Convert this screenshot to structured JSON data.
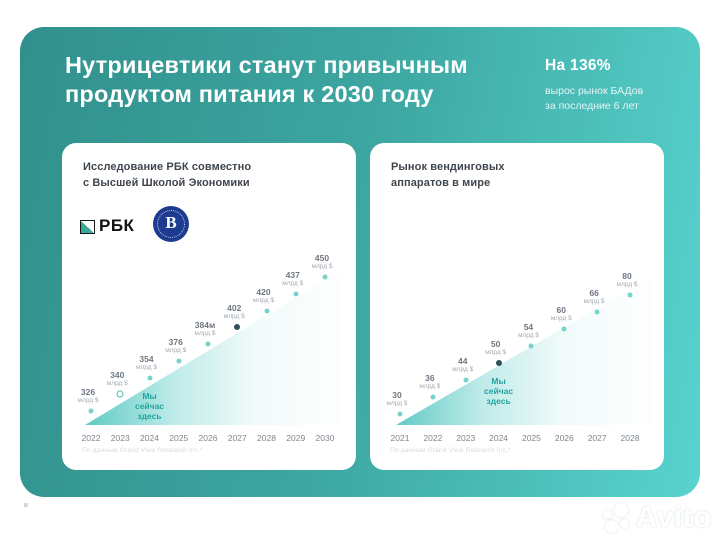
{
  "page": {
    "corner_fragment": "и"
  },
  "slide": {
    "title": "Нутрицевтики станут привычным\nпродуктом питания к 2030 году",
    "stat": {
      "value": "На 136%",
      "description": "вырос рынок БАДов\nза последние 6 лет"
    },
    "colors": {
      "background_gradient_start": "#31908c",
      "background_gradient_end": "#59d3ce",
      "accent_teal": "#23a49e",
      "card_background": "#ffffff"
    }
  },
  "logos": {
    "rbc": "РБК",
    "hse_letter": "В"
  },
  "chart_data": [
    {
      "type": "area",
      "title": "Исследование РБК совместно\nс Высшей Школой Экономики",
      "logos": [
        "РБК",
        "Высшая Школа Экономики"
      ],
      "categories": [
        "2022",
        "2023",
        "2024",
        "2025",
        "2026",
        "2027",
        "2028",
        "2029",
        "2030"
      ],
      "values": [
        326,
        340,
        354,
        376,
        384,
        402,
        420,
        437,
        450
      ],
      "value_labels": [
        "326",
        "340",
        "354",
        "376",
        "384м",
        "402",
        "420",
        "437",
        "450"
      ],
      "unit": "млрд $",
      "xlabel": "",
      "ylabel": "",
      "legend": "none",
      "grid": false,
      "annotation": "Мы\nсейчас\nздесь",
      "annotation_index": 2,
      "ring_index": 1,
      "highlight_index": 5,
      "source": "По данным Grand View Research Inc.*"
    },
    {
      "type": "area",
      "title": "Рынок вендинговых\nаппаратов в мире",
      "categories": [
        "2021",
        "2022",
        "2023",
        "2024",
        "2025",
        "2026",
        "2027",
        "2028"
      ],
      "values": [
        30,
        36,
        44,
        50,
        54,
        60,
        66,
        80
      ],
      "value_labels": [
        "30",
        "36",
        "44",
        "50",
        "54",
        "60",
        "66",
        "80"
      ],
      "unit": "млрд $",
      "xlabel": "",
      "ylabel": "",
      "legend": "none",
      "grid": false,
      "annotation": "Мы\nсейчас\nздесь",
      "annotation_index": 3,
      "ring_index": null,
      "highlight_index": 3,
      "source": "По данным Grand View Research Inc.*"
    }
  ],
  "watermark": {
    "brand": "Avito"
  }
}
